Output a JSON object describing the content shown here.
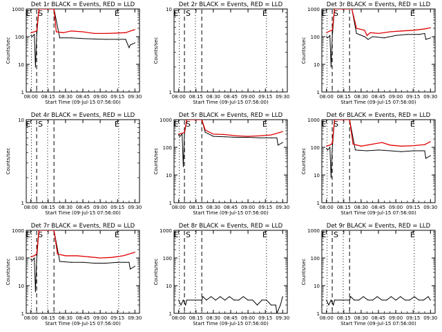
{
  "colors": {
    "events": "#000000",
    "lld": "#e00000",
    "background": "#ffffff"
  },
  "shared": {
    "ylabel": "Counts/sec",
    "xlabel": "Start Time (09-Jul-15 07:56:00)",
    "xticks": [
      "08:00",
      "08:15",
      "08:30",
      "08:45",
      "09:00",
      "09:15",
      "09:30"
    ],
    "yticks": [
      "1",
      "10",
      "100",
      "1000"
    ],
    "markers": [
      "E",
      "S",
      "E"
    ]
  },
  "chart_data": [
    {
      "type": "line",
      "title": "Det 1r BLACK = Events, RED = LLD",
      "ylim": [
        1,
        1000
      ],
      "log_y": true,
      "series": [
        {
          "name": "Events",
          "x": [
            "08:00",
            "08:01",
            "08:03",
            "08:04",
            "08:05",
            "08:07",
            "08:20",
            "08:25",
            "08:35",
            "08:45",
            "08:55",
            "09:05",
            "09:15",
            "09:22",
            "09:25",
            "09:26",
            "09:30"
          ],
          "values": [
            110,
            100,
            120,
            8,
            110,
            1000,
            1000,
            90,
            90,
            85,
            82,
            80,
            80,
            80,
            40,
            50,
            60
          ]
        },
        {
          "name": "LLD",
          "x": [
            "08:00",
            "08:03",
            "08:05",
            "08:07",
            "08:20",
            "08:22",
            "08:28",
            "08:35",
            "08:45",
            "08:55",
            "09:05",
            "09:15",
            "09:22",
            "09:28",
            "09:30"
          ],
          "values": [
            140,
            150,
            160,
            1000,
            1000,
            150,
            140,
            160,
            150,
            130,
            130,
            135,
            140,
            170,
            180
          ]
        }
      ]
    },
    {
      "type": "line",
      "title": "Det 2r BLACK = Events, RED = LLD",
      "ylim": [
        1,
        10
      ],
      "log_y": true,
      "series": []
    },
    {
      "type": "line",
      "title": "Det 3r BLACK = Events, RED = LLD",
      "ylim": [
        1,
        1000
      ],
      "log_y": true,
      "series": [
        {
          "name": "Events",
          "x": [
            "08:00",
            "08:01",
            "08:03",
            "08:04",
            "08:05",
            "08:07",
            "08:22",
            "08:26",
            "08:33",
            "08:36",
            "08:40",
            "08:50",
            "09:00",
            "09:10",
            "09:20",
            "09:25",
            "09:26",
            "09:30"
          ],
          "values": [
            100,
            90,
            110,
            8,
            100,
            1000,
            1000,
            130,
            100,
            80,
            100,
            90,
            110,
            120,
            120,
            130,
            80,
            90
          ]
        },
        {
          "name": "LLD",
          "x": [
            "08:00",
            "08:03",
            "08:05",
            "08:07",
            "08:22",
            "08:26",
            "08:33",
            "08:35",
            "08:38",
            "08:45",
            "08:55",
            "09:05",
            "09:15",
            "09:25",
            "09:30"
          ],
          "values": [
            140,
            160,
            170,
            1000,
            1000,
            200,
            170,
            110,
            140,
            130,
            150,
            160,
            170,
            190,
            210
          ]
        }
      ]
    },
    {
      "type": "line",
      "title": "Det 4r BLACK = Events, RED = LLD",
      "ylim": [
        1,
        10
      ],
      "log_y": true,
      "series": []
    },
    {
      "type": "line",
      "title": "Det 5r BLACK = Events, RED = LLD",
      "ylim": [
        1,
        1000
      ],
      "log_y": true,
      "series": [
        {
          "name": "Events",
          "x": [
            "08:00",
            "08:01",
            "08:03",
            "08:04",
            "08:05",
            "08:07",
            "08:20",
            "08:23",
            "08:30",
            "08:40",
            "08:50",
            "09:00",
            "09:10",
            "09:20",
            "09:25",
            "09:26",
            "09:30"
          ],
          "values": [
            280,
            250,
            300,
            20,
            300,
            1000,
            1000,
            350,
            250,
            240,
            230,
            230,
            220,
            220,
            220,
            120,
            150
          ]
        },
        {
          "name": "LLD",
          "x": [
            "08:00",
            "08:03",
            "08:05",
            "08:07",
            "08:20",
            "08:23",
            "08:30",
            "08:40",
            "08:50",
            "09:00",
            "09:10",
            "09:20",
            "09:30"
          ],
          "values": [
            300,
            320,
            350,
            1000,
            1000,
            420,
            300,
            290,
            260,
            250,
            260,
            280,
            370
          ]
        }
      ]
    },
    {
      "type": "line",
      "title": "Det 6r BLACK = Events, RED = LLD",
      "ylim": [
        1,
        1000
      ],
      "log_y": true,
      "series": [
        {
          "name": "Events",
          "x": [
            "08:00",
            "08:01",
            "08:03",
            "08:04",
            "08:05",
            "08:07",
            "08:20",
            "08:25",
            "08:35",
            "08:45",
            "08:55",
            "09:05",
            "09:15",
            "09:22",
            "09:25",
            "09:26",
            "09:30"
          ],
          "values": [
            90,
            80,
            100,
            8,
            90,
            1000,
            1000,
            80,
            75,
            80,
            75,
            70,
            75,
            75,
            75,
            40,
            50
          ]
        },
        {
          "name": "LLD",
          "x": [
            "08:00",
            "08:03",
            "08:05",
            "08:07",
            "08:20",
            "08:23",
            "08:30",
            "08:40",
            "08:48",
            "08:55",
            "09:05",
            "09:15",
            "09:25",
            "09:30"
          ],
          "values": [
            110,
            120,
            140,
            1000,
            1000,
            130,
            110,
            130,
            150,
            120,
            110,
            115,
            125,
            160
          ]
        }
      ]
    },
    {
      "type": "line",
      "title": "Det 7r BLACK = Events, RED = LLD",
      "ylim": [
        1,
        1000
      ],
      "log_y": true,
      "series": [
        {
          "name": "Events",
          "x": [
            "08:00",
            "08:01",
            "08:03",
            "08:04",
            "08:05",
            "08:07",
            "08:20",
            "08:25",
            "08:35",
            "08:45",
            "08:55",
            "09:05",
            "09:15",
            "09:22",
            "09:25",
            "09:26",
            "09:30"
          ],
          "values": [
            90,
            80,
            100,
            6,
            90,
            1000,
            1000,
            75,
            70,
            70,
            65,
            65,
            70,
            70,
            70,
            40,
            50
          ]
        },
        {
          "name": "LLD",
          "x": [
            "08:00",
            "08:03",
            "08:05",
            "08:07",
            "08:20",
            "08:23",
            "08:30",
            "08:40",
            "08:50",
            "09:00",
            "09:10",
            "09:20",
            "09:30"
          ],
          "values": [
            110,
            120,
            140,
            1000,
            1000,
            140,
            120,
            120,
            110,
            100,
            105,
            120,
            160
          ]
        }
      ]
    },
    {
      "type": "line",
      "title": "Det 8r BLACK = Events, RED = LLD",
      "ylim": [
        1,
        1000
      ],
      "log_y": true,
      "series": [
        {
          "name": "Events",
          "x": [
            "08:00",
            "08:02",
            "08:04",
            "08:06",
            "08:07",
            "08:20",
            "08:21",
            "08:24",
            "08:28",
            "08:32",
            "08:36",
            "08:40",
            "08:44",
            "08:48",
            "08:52",
            "08:56",
            "09:00",
            "09:04",
            "09:08",
            "09:12",
            "09:16",
            "09:20",
            "09:24",
            "09:25",
            "09:28",
            "09:30"
          ],
          "values": [
            3,
            2,
            3,
            2,
            3,
            3,
            4,
            3,
            4,
            3,
            4,
            3,
            4,
            3,
            3,
            4,
            3,
            3,
            2,
            3,
            3,
            2,
            2,
            1,
            2,
            4
          ]
        }
      ]
    },
    {
      "type": "line",
      "title": "Det 9r BLACK = Events, RED = LLD",
      "ylim": [
        1,
        1000
      ],
      "log_y": true,
      "series": [
        {
          "name": "Events",
          "x": [
            "08:00",
            "08:02",
            "08:04",
            "08:06",
            "08:07",
            "08:20",
            "08:21",
            "08:24",
            "08:28",
            "08:32",
            "08:36",
            "08:40",
            "08:44",
            "08:48",
            "08:52",
            "08:56",
            "09:00",
            "09:04",
            "09:08",
            "09:12",
            "09:16",
            "09:20",
            "09:24",
            "09:28",
            "09:30"
          ],
          "values": [
            3,
            2,
            3,
            2,
            3,
            3,
            4,
            3,
            3,
            4,
            3,
            3,
            4,
            3,
            3,
            4,
            3,
            4,
            3,
            3,
            4,
            3,
            3,
            4,
            3
          ]
        }
      ]
    }
  ]
}
